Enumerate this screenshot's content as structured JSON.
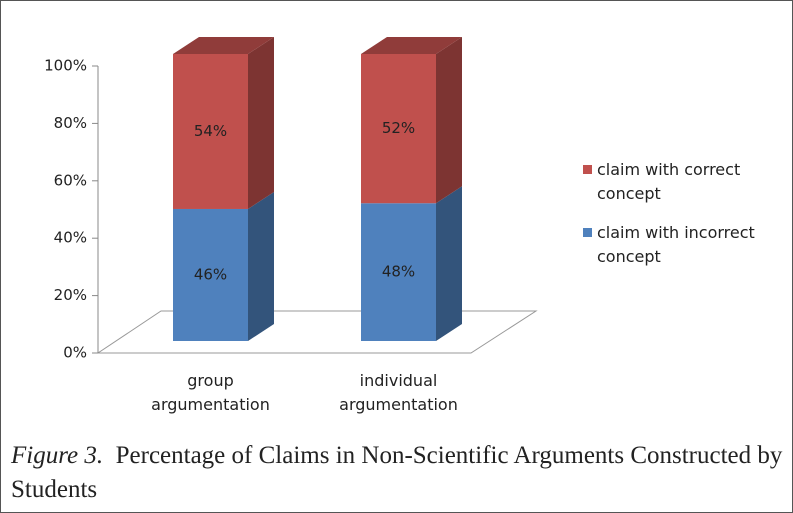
{
  "chart_data": {
    "type": "bar3d_stacked",
    "categories": [
      "group argumentation",
      "individual argumentation"
    ],
    "series": [
      {
        "name": "claim with incorrect concept",
        "color": "#4f81bd",
        "values": [
          46,
          48
        ],
        "value_labels": [
          "46%",
          "48%"
        ]
      },
      {
        "name": "claim with correct concept",
        "color": "#c0504d",
        "values": [
          54,
          52
        ],
        "value_labels": [
          "54%",
          "52%"
        ]
      }
    ],
    "ylim": [
      0,
      100
    ],
    "yticks": [
      {
        "value": 0,
        "label": "0%"
      },
      {
        "value": 20,
        "label": "20%"
      },
      {
        "value": 40,
        "label": "40%"
      },
      {
        "value": 60,
        "label": "60%"
      },
      {
        "value": 80,
        "label": "80%"
      },
      {
        "value": 100,
        "label": "100%"
      }
    ],
    "legend": "right",
    "figure_label": "Figure 3.",
    "caption": "Percentage of Claims in Non-Scientific Arguments Constructed by Students"
  }
}
